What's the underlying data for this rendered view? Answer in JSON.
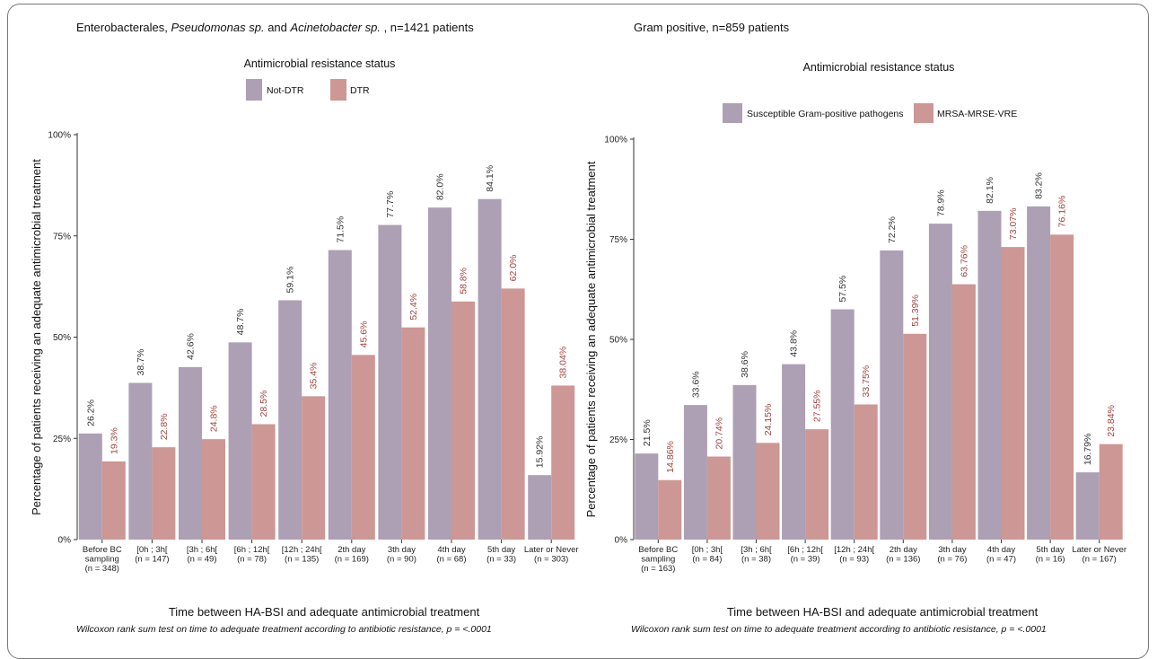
{
  "chart_data": [
    {
      "type": "bar",
      "title_parts": [
        "Enterobacterales, ",
        "Pseudomonas sp.",
        " and ",
        "Acinetobacter sp.",
        " , n=1421 patients"
      ],
      "legend_title": "Antimicrobial resistance status",
      "legend_position": "top-center",
      "ylabel": "Percentage of patients receiving an adequate antimicrobial treatment",
      "xlabel": "Time between HA-BSI and adequate antimicrobial treatment",
      "note": "Wilcoxon rank sum test on time to adequate treatment according to antibiotic resistance, p = <.0001",
      "ylim": [
        0,
        100
      ],
      "yticks": [
        "0%",
        "25%",
        "50%",
        "75%",
        "100%"
      ],
      "grid": false,
      "categories": [
        [
          "Before BC",
          "sampling",
          "(n = 348)"
        ],
        [
          "[0h ; 3h[",
          "(n = 147)"
        ],
        [
          "[3h ; 6h[",
          "(n = 49)"
        ],
        [
          "[6h ; 12h[",
          "(n = 78)"
        ],
        [
          "[12h ; 24h[",
          "(n = 135)"
        ],
        [
          "2th day",
          "(n = 169)"
        ],
        [
          "3th day",
          "(n = 90)"
        ],
        [
          "4th day",
          "(n = 68)"
        ],
        [
          "5th day",
          "(n = 33)"
        ],
        [
          "Later or Never",
          "(n = 303)"
        ]
      ],
      "series": [
        {
          "name": "Not-DTR",
          "color": "#ad9fb4",
          "label_color": "#333333",
          "values": [
            26.2,
            38.7,
            42.6,
            48.7,
            59.1,
            71.5,
            77.7,
            82.0,
            84.1,
            15.92
          ],
          "labels": [
            "26.2%",
            "38.7%",
            "42.6%",
            "48.7%",
            "59.1%",
            "71.5%",
            "77.7%",
            "82.0%",
            "84.1%",
            "15.92%"
          ]
        },
        {
          "name": "DTR",
          "color": "#cc9794",
          "label_color": "#a2433d",
          "values": [
            19.3,
            22.8,
            24.8,
            28.5,
            35.4,
            45.6,
            52.4,
            58.8,
            62.0,
            38.04
          ],
          "labels": [
            "19.3%",
            "22.8%",
            "24.8%",
            "28.5%",
            "35.4%",
            "45.6%",
            "52.4%",
            "58.8%",
            "62.0%",
            "38.04%"
          ]
        }
      ]
    },
    {
      "type": "bar",
      "title_parts": [
        "Gram positive, n=859 patients"
      ],
      "legend_title": "Antimicrobial resistance status",
      "legend_position": "top-center",
      "ylabel": "Percentage of patients receiving an adequate antimicrobial treatment",
      "xlabel": "Time between HA-BSI and adequate antimicrobial treatment",
      "note": "Wilcoxon rank sum test on time to adequate treatment according to antibiotic resistance, p = <.0001",
      "ylim": [
        0,
        100
      ],
      "yticks": [
        "0%",
        "25%",
        "50%",
        "75%",
        "100%"
      ],
      "grid": false,
      "categories": [
        [
          "Before BC",
          "sampling",
          "(n = 163)"
        ],
        [
          "[0h ; 3h[",
          "(n = 84)"
        ],
        [
          "[3h ; 6h[",
          "(n = 38)"
        ],
        [
          "[6h ; 12h[",
          "(n = 39)"
        ],
        [
          "[12h ; 24h[",
          "(n = 93)"
        ],
        [
          "2th day",
          "(n = 136)"
        ],
        [
          "3th day",
          "(n = 76)"
        ],
        [
          "4th day",
          "(n = 47)"
        ],
        [
          "5th day",
          "(n = 16)"
        ],
        [
          "Later or Never",
          "(n = 167)"
        ]
      ],
      "series": [
        {
          "name": "Susceptible Gram-positive pathogens",
          "color": "#ad9fb4",
          "label_color": "#333333",
          "values": [
            21.5,
            33.6,
            38.6,
            43.8,
            57.5,
            72.2,
            78.9,
            82.1,
            83.2,
            16.79
          ],
          "labels": [
            "21.5%",
            "33.6%",
            "38.6%",
            "43.8%",
            "57.5%",
            "72.2%",
            "78.9%",
            "82.1%",
            "83.2%",
            "16.79%"
          ]
        },
        {
          "name": "MRSA-MRSE-VRE",
          "color": "#cc9794",
          "label_color": "#a2433d",
          "values": [
            14.86,
            20.74,
            24.15,
            27.55,
            33.75,
            51.39,
            63.76,
            73.07,
            76.16,
            23.84
          ],
          "labels": [
            "14.86%",
            "20.74%",
            "24.15%",
            "27.55%",
            "33.75%",
            "51.39%",
            "63.76%",
            "73.07%",
            "76.16%",
            "23.84%"
          ]
        }
      ]
    }
  ]
}
